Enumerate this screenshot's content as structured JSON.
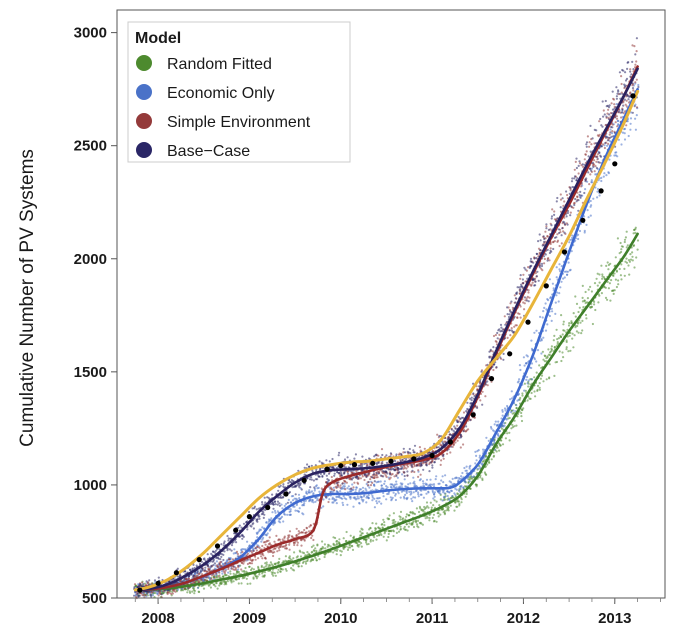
{
  "chart_data": {
    "type": "line",
    "ylabel": "Cumulative Number of PV Systems",
    "xlabel": "",
    "xlim": [
      2007.55,
      2013.55
    ],
    "ylim": [
      500,
      3100
    ],
    "x_ticks": [
      2008,
      2009,
      2010,
      2011,
      2012,
      2013
    ],
    "x_tick_labels": [
      "2008",
      "2009",
      "2010",
      "2011",
      "2012",
      "2013"
    ],
    "y_ticks": [
      500,
      1000,
      1500,
      2000,
      2500,
      3000
    ],
    "y_tick_labels": [
      "500",
      "1000",
      "1500",
      "2000",
      "2500",
      "3000"
    ],
    "grid": false,
    "legend": {
      "title": "Model",
      "placement": "top-left",
      "entries": [
        "Random Fitted",
        "Economic Only",
        "Simple Environment",
        "Base−Case"
      ]
    },
    "series": [
      {
        "name": "Random Fitted",
        "color": "#4d8a2e",
        "line_color": "#3f7f2a",
        "x": [
          2007.75,
          2007.9,
          2008.1,
          2008.3,
          2008.5,
          2008.7,
          2008.9,
          2009.1,
          2009.3,
          2009.5,
          2009.7,
          2009.9,
          2010.1,
          2010.3,
          2010.5,
          2010.7,
          2010.9,
          2011.1,
          2011.3,
          2011.5,
          2011.7,
          2011.9,
          2012.1,
          2012.3,
          2012.5,
          2012.7,
          2012.9,
          2013.1,
          2013.25
        ],
        "y": [
          536,
          537,
          542,
          552,
          566,
          582,
          598,
          617,
          638,
          662,
          688,
          716,
          746,
          776,
          806,
          836,
          866,
          902,
          950,
          1040,
          1180,
          1300,
          1440,
          1560,
          1680,
          1790,
          1900,
          2010,
          2110
        ]
      },
      {
        "name": "Economic Only",
        "color": "#4a72c8",
        "line_color": "#3f6ad0",
        "x": [
          2007.75,
          2007.9,
          2008.1,
          2008.3,
          2008.5,
          2008.7,
          2008.9,
          2009.1,
          2009.3,
          2009.5,
          2009.7,
          2009.9,
          2010.1,
          2010.3,
          2010.5,
          2010.7,
          2010.9,
          2011.1,
          2011.2,
          2011.3,
          2011.5,
          2011.7,
          2011.9,
          2012.1,
          2012.3,
          2012.5,
          2012.7,
          2012.9,
          2013.1,
          2013.25
        ],
        "y": [
          536,
          538,
          548,
          568,
          596,
          632,
          680,
          760,
          860,
          920,
          950,
          960,
          960,
          965,
          975,
          982,
          985,
          985,
          988,
          1010,
          1090,
          1230,
          1380,
          1570,
          1800,
          2030,
          2250,
          2450,
          2620,
          2750
        ]
      },
      {
        "name": "Simple Environment",
        "color": "#943a3a",
        "line_color": "#9b2a2a",
        "x": [
          2007.75,
          2007.9,
          2008.1,
          2008.3,
          2008.5,
          2008.7,
          2008.9,
          2009.1,
          2009.3,
          2009.5,
          2009.7,
          2009.8,
          2009.9,
          2010.1,
          2010.3,
          2010.5,
          2010.7,
          2010.9,
          2011.1,
          2011.3,
          2011.5,
          2011.7,
          2011.9,
          2012.1,
          2012.3,
          2012.5,
          2012.7,
          2012.9,
          2013.1,
          2013.25
        ],
        "y": [
          536,
          538,
          548,
          568,
          598,
          630,
          666,
          700,
          735,
          760,
          800,
          960,
          1010,
          1040,
          1060,
          1080,
          1095,
          1110,
          1140,
          1230,
          1390,
          1580,
          1760,
          1930,
          2090,
          2240,
          2400,
          2560,
          2720,
          2850
        ]
      },
      {
        "name": "Base−Case",
        "color": "#2a2666",
        "line_color": "#2a2260",
        "x": [
          2007.75,
          2007.9,
          2008.1,
          2008.3,
          2008.5,
          2008.7,
          2008.9,
          2009.1,
          2009.3,
          2009.5,
          2009.7,
          2009.9,
          2010.1,
          2010.3,
          2010.5,
          2010.7,
          2010.9,
          2011.1,
          2011.3,
          2011.5,
          2011.7,
          2011.9,
          2012.1,
          2012.3,
          2012.5,
          2012.7,
          2012.9,
          2013.1,
          2013.25
        ],
        "y": [
          536,
          540,
          560,
          598,
          648,
          712,
          790,
          880,
          950,
          1010,
          1050,
          1065,
          1070,
          1075,
          1085,
          1100,
          1120,
          1160,
          1250,
          1400,
          1590,
          1770,
          1940,
          2100,
          2260,
          2420,
          2570,
          2720,
          2840
        ]
      }
    ],
    "reference_line": {
      "color": "#e8b53a",
      "x": [
        2007.75,
        2007.9,
        2008.1,
        2008.3,
        2008.5,
        2008.7,
        2008.9,
        2009.1,
        2009.3,
        2009.5,
        2009.7,
        2009.9,
        2010.1,
        2010.3,
        2010.5,
        2010.7,
        2010.9,
        2011.1,
        2011.3,
        2011.5,
        2011.7,
        2011.9,
        2012.1,
        2012.3,
        2012.5,
        2012.7,
        2012.9,
        2013.1,
        2013.25
      ],
      "y": [
        536,
        548,
        580,
        632,
        700,
        780,
        860,
        940,
        1000,
        1045,
        1075,
        1090,
        1100,
        1105,
        1115,
        1125,
        1140,
        1200,
        1330,
        1460,
        1560,
        1660,
        1800,
        1950,
        2100,
        2270,
        2430,
        2600,
        2740
      ]
    },
    "observed_points": {
      "color": "#000000",
      "x": [
        2007.8,
        2008.0,
        2008.2,
        2008.45,
        2008.65,
        2008.85,
        2009.0,
        2009.2,
        2009.4,
        2009.6,
        2009.85,
        2010.0,
        2010.15,
        2010.35,
        2010.55,
        2010.8,
        2011.0,
        2011.2,
        2011.45,
        2011.65,
        2011.85,
        2012.05,
        2012.25,
        2012.45,
        2012.65,
        2012.85,
        2013.0,
        2013.2
      ],
      "y": [
        535,
        565,
        612,
        670,
        730,
        800,
        860,
        900,
        960,
        1020,
        1070,
        1085,
        1090,
        1095,
        1105,
        1115,
        1130,
        1190,
        1310,
        1470,
        1580,
        1720,
        1880,
        2030,
        2170,
        2300,
        2420,
        2720
      ]
    }
  }
}
